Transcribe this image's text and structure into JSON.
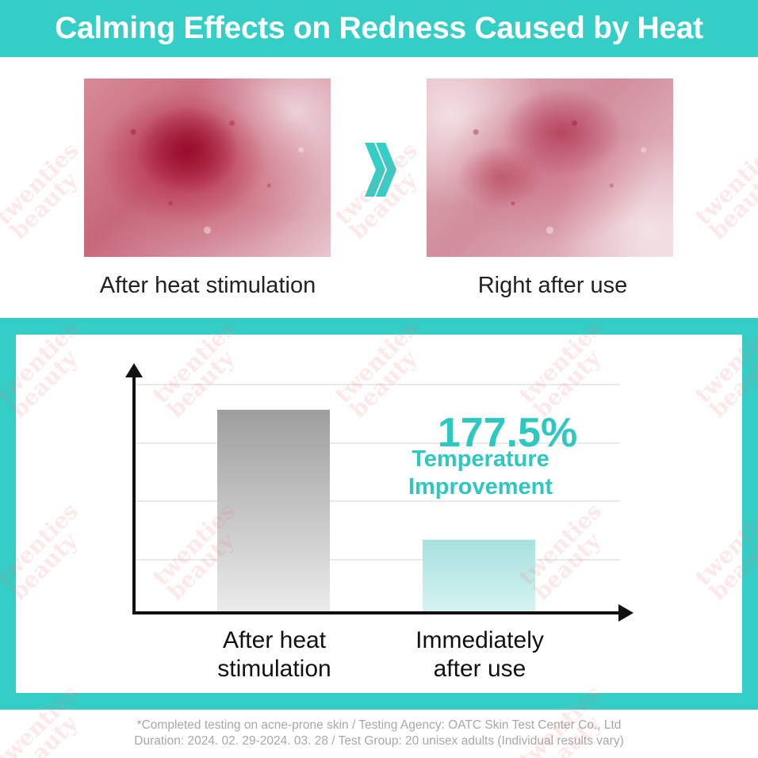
{
  "header": {
    "title": "Calming Effects on Redness Caused by Heat"
  },
  "photos": {
    "before_caption": "After heat stimulation",
    "after_caption": "Right after use",
    "arrow_icon": "double-chevron-right-icon"
  },
  "highlight": {
    "value": "177.5%",
    "label_line1": "Temperature",
    "label_line2": "Improvement"
  },
  "chart_data": {
    "type": "bar",
    "categories": [
      "After heat\nstimulation",
      "Immediately\nafter use"
    ],
    "category_lines": [
      [
        "After heat",
        "stimulation"
      ],
      [
        "Immediately",
        "after use"
      ]
    ],
    "values": [
      277.5,
      100
    ],
    "value_note": "relative bar heights (after-use = 100); difference shown as 177.5% improvement",
    "ylim": [
      0,
      300
    ],
    "grid": true,
    "xlabel": "",
    "ylabel": "",
    "colors": {
      "bar_before_top": "#9e9e9e",
      "bar_before_bottom": "#ececec",
      "bar_after_top": "#a7e1de",
      "bar_after_bottom": "#d7f3f1",
      "axis": "#111111",
      "grid": "#d6d6d6"
    }
  },
  "footnote": {
    "line1": "*Completed testing on acne-prone skin / Testing Agency: OATC Skin Test Center Co., Ltd",
    "line2": "Duration: 2024. 02. 29-2024. 03. 28 / Test Group: 20 unisex adults (Individual results vary)"
  },
  "watermark": {
    "line1": "twenties",
    "line2": "beauty"
  },
  "colors": {
    "accent": "#35cec6",
    "accent_text": "#2fc8c0"
  }
}
